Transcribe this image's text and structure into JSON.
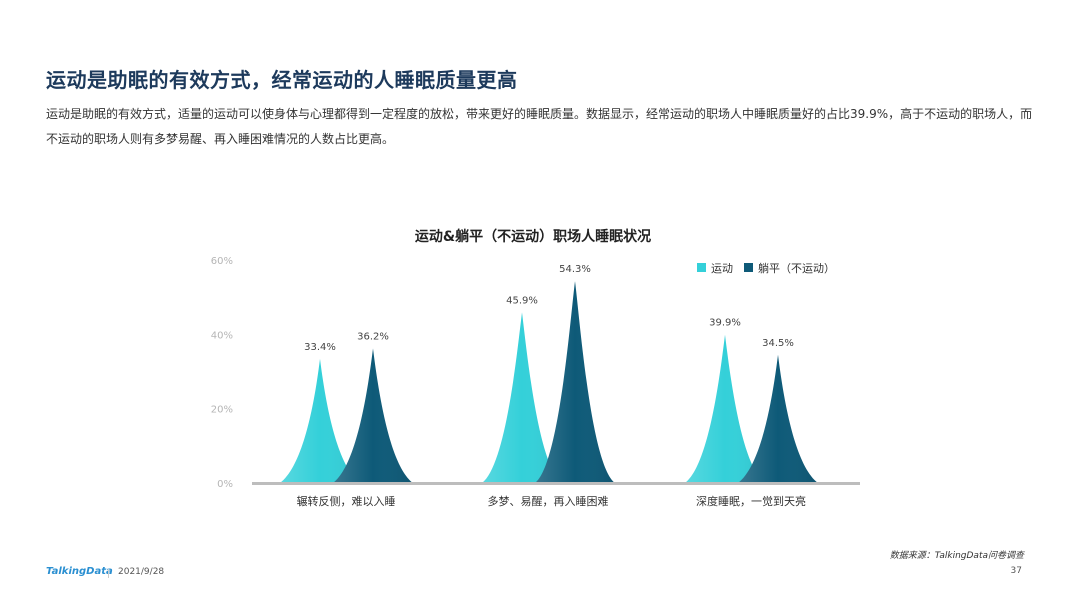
{
  "header": {
    "title": "运动是助眠的有效方式，经常运动的人睡眠质量更高",
    "description": "运动是助眠的有效方式，适量的运动可以使身体与心理都得到一定程度的放松，带来更好的睡眠质量。数据显示，经常运动的职场人中睡眠质量好的占比39.9%，高于不运动的职场人，而不运动的职场人则有多梦易醒、再入睡困难情况的人数占比更高。"
  },
  "chart_data": {
    "type": "bar",
    "title": "运动&躺平（不运动）职场人睡眠状况",
    "categories": [
      "辗转反侧，难以入睡",
      "多梦、易醒，再入睡困难",
      "深度睡眠，一觉到天亮"
    ],
    "series": [
      {
        "name": "运动",
        "values": [
          33.4,
          45.9,
          39.9
        ],
        "color": "#34d0d9"
      },
      {
        "name": "躺平（不运动）",
        "values": [
          36.2,
          54.3,
          34.5
        ],
        "color": "#0e5a78"
      }
    ],
    "value_labels": [
      [
        "33.4%",
        "45.9%",
        "39.9%"
      ],
      [
        "36.2%",
        "54.3%",
        "34.5%"
      ]
    ],
    "yticks": [
      "0%",
      "20%",
      "40%",
      "60%"
    ],
    "ytick_values": [
      0,
      20,
      40,
      60
    ],
    "ylim": [
      0,
      60
    ],
    "grid": false,
    "legend_position": "top-right",
    "bar_shape": "peak"
  },
  "footer": {
    "source": "数据来源：TalkingData问卷调查",
    "brand": "TalkingData",
    "date": "2021/9/28",
    "page": "37"
  }
}
